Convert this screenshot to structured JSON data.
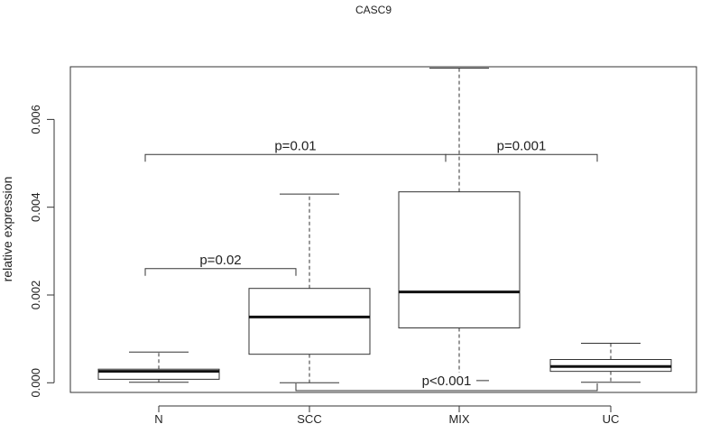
{
  "chart_data": {
    "type": "box",
    "title": "CASC9",
    "xlabel": "",
    "ylabel": "relative expression",
    "ylim": [
      -0.00022,
      0.0072
    ],
    "y_ticks": [
      "0.000",
      "0.002",
      "0.004",
      "0.006"
    ],
    "y_tick_values": [
      0,
      0.002,
      0.004,
      0.006
    ],
    "categories": [
      "N",
      "SCC",
      "MIX",
      "UC"
    ],
    "boxes": [
      {
        "category": "N",
        "whisker_low": 1e-05,
        "q1": 8e-05,
        "median": 0.00026,
        "q3": 0.00031,
        "whisker_high": 0.0007
      },
      {
        "category": "SCC",
        "whisker_low": 0.0,
        "q1": 0.00065,
        "median": 0.0015,
        "q3": 0.00215,
        "whisker_high": 0.0043
      },
      {
        "category": "MIX",
        "whisker_low": 5e-05,
        "q1": 0.00125,
        "median": 0.00207,
        "q3": 0.00435,
        "whisker_high": 0.00717
      },
      {
        "category": "UC",
        "whisker_low": 1e-05,
        "q1": 0.00026,
        "median": 0.00037,
        "q3": 0.00053,
        "whisker_high": 0.0009
      }
    ],
    "annotations": [
      {
        "label": "p=0.02",
        "from": "N",
        "to": "SCC",
        "y": 0.0026,
        "direction": "down"
      },
      {
        "label": "p=0.01",
        "from": "N",
        "to": "MIX",
        "y": 0.0052,
        "direction": "down"
      },
      {
        "label": "p=0.001",
        "from": "MIX",
        "to": "UC",
        "y": 0.0052,
        "direction": "down"
      },
      {
        "label": "p<0.001",
        "from": "SCC",
        "to": "UC",
        "y": -0.00018,
        "direction": "up"
      }
    ]
  }
}
